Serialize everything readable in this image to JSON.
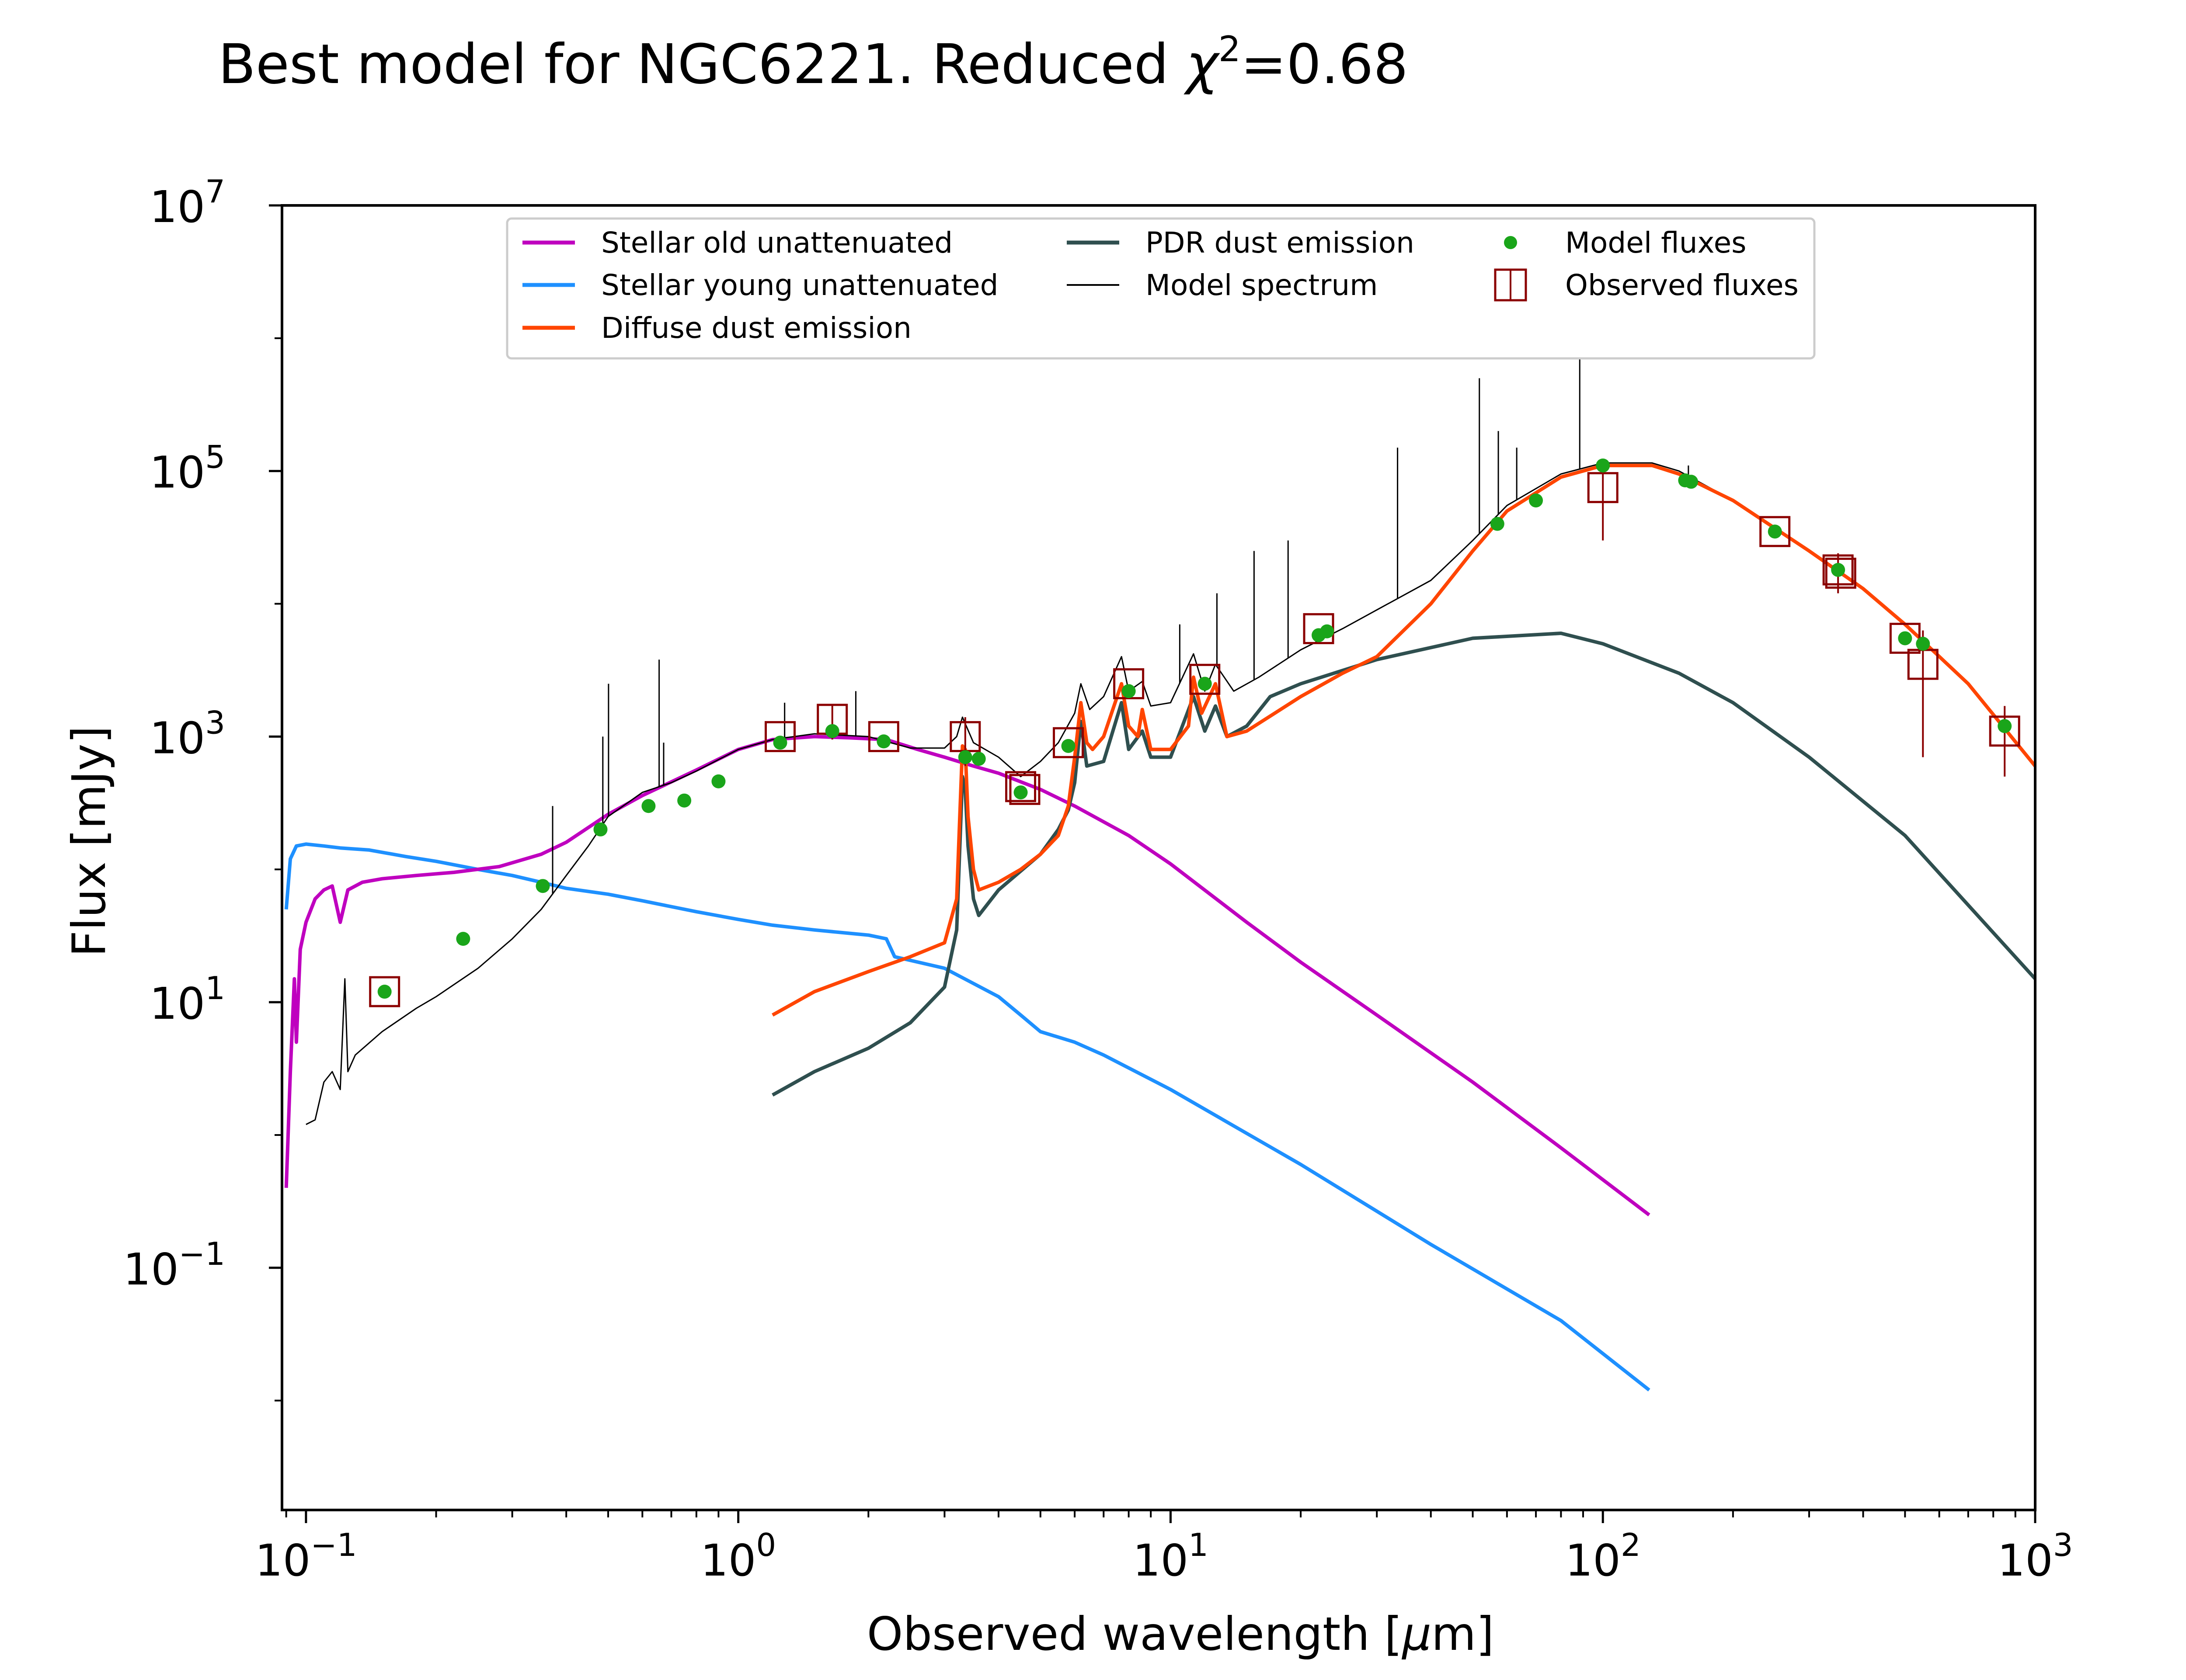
{
  "chart_data": {
    "type": "line",
    "title_main": "Best model for NGC6221. Reduced ",
    "title_chi": "χ",
    "title_sup": "2",
    "title_tail": "=0.68",
    "xlabel_main": "Observed wavelength [",
    "xlabel_mu": "μ",
    "xlabel_tail": "m]",
    "ylabel": "Flux [mJy]",
    "xscale": "log",
    "yscale": "log",
    "xlim": [
      0.088,
      1000
    ],
    "ylim": [
      0.0015,
      10000000
    ],
    "grid": false,
    "legend_placement": "top-center",
    "x_ticks": [
      {
        "value": 0.1,
        "base": "10",
        "exp": "−1"
      },
      {
        "value": 1,
        "base": "10",
        "exp": "0"
      },
      {
        "value": 10,
        "base": "10",
        "exp": "1"
      },
      {
        "value": 100,
        "base": "10",
        "exp": "2"
      },
      {
        "value": 1000,
        "base": "10",
        "exp": "3"
      }
    ],
    "y_ticks": [
      {
        "value": 0.1,
        "base": "10",
        "exp": "−1"
      },
      {
        "value": 10,
        "base": "10",
        "exp": "1"
      },
      {
        "value": 1000,
        "base": "10",
        "exp": "3"
      },
      {
        "value": 100000,
        "base": "10",
        "exp": "5"
      },
      {
        "value": 10000000,
        "base": "10",
        "exp": "7"
      }
    ],
    "series": [
      {
        "name": "Stellar old unattenuated",
        "color": "#bf00bf",
        "points": [
          [
            0.09,
            0.4
          ],
          [
            0.092,
            3
          ],
          [
            0.094,
            15
          ],
          [
            0.095,
            5
          ],
          [
            0.097,
            25
          ],
          [
            0.1,
            40
          ],
          [
            0.105,
            60
          ],
          [
            0.11,
            70
          ],
          [
            0.115,
            75
          ],
          [
            0.12,
            40
          ],
          [
            0.125,
            70
          ],
          [
            0.135,
            80
          ],
          [
            0.15,
            85
          ],
          [
            0.18,
            90
          ],
          [
            0.22,
            95
          ],
          [
            0.28,
            105
          ],
          [
            0.35,
            130
          ],
          [
            0.4,
            160
          ],
          [
            0.5,
            260
          ],
          [
            0.6,
            360
          ],
          [
            0.8,
            560
          ],
          [
            1.0,
            800
          ],
          [
            1.2,
            950
          ],
          [
            1.5,
            1000
          ],
          [
            1.8,
            980
          ],
          [
            2.2,
            950
          ],
          [
            2.6,
            800
          ],
          [
            3.0,
            700
          ],
          [
            3.5,
            600
          ],
          [
            4.0,
            530
          ],
          [
            5.0,
            400
          ],
          [
            6.0,
            300
          ],
          [
            8.0,
            180
          ],
          [
            10.0,
            110
          ],
          [
            15.0,
            40
          ],
          [
            20.0,
            20
          ],
          [
            30.0,
            8
          ],
          [
            50.0,
            2.5
          ],
          [
            80.0,
            0.8
          ],
          [
            128.0,
            0.25
          ]
        ]
      },
      {
        "name": "Stellar young unattenuated",
        "color": "#1e90ff",
        "points": [
          [
            0.09,
            50
          ],
          [
            0.092,
            120
          ],
          [
            0.095,
            150
          ],
          [
            0.1,
            155
          ],
          [
            0.11,
            150
          ],
          [
            0.12,
            145
          ],
          [
            0.14,
            140
          ],
          [
            0.17,
            125
          ],
          [
            0.2,
            115
          ],
          [
            0.25,
            100
          ],
          [
            0.3,
            90
          ],
          [
            0.35,
            80
          ],
          [
            0.4,
            72
          ],
          [
            0.5,
            65
          ],
          [
            0.6,
            58
          ],
          [
            0.8,
            48
          ],
          [
            1.0,
            42
          ],
          [
            1.2,
            38
          ],
          [
            1.5,
            35
          ],
          [
            2.0,
            32
          ],
          [
            2.2,
            30
          ],
          [
            2.3,
            22
          ],
          [
            3.0,
            18
          ],
          [
            4.0,
            11
          ],
          [
            4.5,
            8
          ],
          [
            5.0,
            6
          ],
          [
            6.0,
            5
          ],
          [
            7.0,
            4
          ],
          [
            10.0,
            2.2
          ],
          [
            20.0,
            0.6
          ],
          [
            40.0,
            0.15
          ],
          [
            80.0,
            0.04
          ],
          [
            128.0,
            0.012
          ]
        ]
      },
      {
        "name": "Diffuse dust emission",
        "color": "#ff4500",
        "points": [
          [
            1.2,
            8
          ],
          [
            1.5,
            12
          ],
          [
            2.0,
            17
          ],
          [
            2.5,
            22
          ],
          [
            3.0,
            28
          ],
          [
            3.2,
            60
          ],
          [
            3.3,
            850
          ],
          [
            3.35,
            800
          ],
          [
            3.4,
            250
          ],
          [
            3.5,
            100
          ],
          [
            3.6,
            70
          ],
          [
            4.0,
            80
          ],
          [
            4.5,
            100
          ],
          [
            5.0,
            130
          ],
          [
            5.5,
            180
          ],
          [
            5.8,
            300
          ],
          [
            6.0,
            700
          ],
          [
            6.2,
            1800
          ],
          [
            6.4,
            900
          ],
          [
            6.6,
            800
          ],
          [
            7.0,
            1000
          ],
          [
            7.7,
            2500
          ],
          [
            8.0,
            1200
          ],
          [
            8.4,
            1000
          ],
          [
            8.6,
            1600
          ],
          [
            9.0,
            800
          ],
          [
            10.0,
            800
          ],
          [
            11.0,
            1200
          ],
          [
            11.3,
            2800
          ],
          [
            11.8,
            1500
          ],
          [
            12.7,
            2500
          ],
          [
            13.5,
            1000
          ],
          [
            15.0,
            1100
          ],
          [
            20.0,
            2000
          ],
          [
            25.0,
            3000
          ],
          [
            30.0,
            4000
          ],
          [
            40.0,
            10000
          ],
          [
            50.0,
            25000
          ],
          [
            60.0,
            50000
          ],
          [
            80.0,
            90000
          ],
          [
            100.0,
            110000
          ],
          [
            130.0,
            110000
          ],
          [
            150.0,
            95000
          ],
          [
            200.0,
            60000
          ],
          [
            300.0,
            25000
          ],
          [
            400.0,
            13000
          ],
          [
            500.0,
            7000
          ],
          [
            700.0,
            2500
          ],
          [
            1000.0,
            600
          ]
        ]
      },
      {
        "name": "PDR dust emission",
        "color": "#2f4f4f",
        "points": [
          [
            1.2,
            2
          ],
          [
            1.5,
            3
          ],
          [
            2.0,
            4.5
          ],
          [
            2.5,
            7
          ],
          [
            3.0,
            13
          ],
          [
            3.2,
            35
          ],
          [
            3.3,
            500
          ],
          [
            3.35,
            400
          ],
          [
            3.4,
            150
          ],
          [
            3.5,
            60
          ],
          [
            3.6,
            45
          ],
          [
            4.0,
            70
          ],
          [
            5.0,
            130
          ],
          [
            5.5,
            200
          ],
          [
            5.8,
            280
          ],
          [
            6.0,
            450
          ],
          [
            6.2,
            1300
          ],
          [
            6.4,
            600
          ],
          [
            7.0,
            650
          ],
          [
            7.7,
            1800
          ],
          [
            8.0,
            800
          ],
          [
            8.6,
            1100
          ],
          [
            9.0,
            700
          ],
          [
            10.0,
            700
          ],
          [
            11.3,
            2000
          ],
          [
            12.0,
            1100
          ],
          [
            12.7,
            1700
          ],
          [
            13.5,
            1000
          ],
          [
            15.0,
            1200
          ],
          [
            17.0,
            2000
          ],
          [
            20.0,
            2500
          ],
          [
            30.0,
            3800
          ],
          [
            50.0,
            5500
          ],
          [
            80.0,
            6000
          ],
          [
            100.0,
            5000
          ],
          [
            150.0,
            3000
          ],
          [
            200.0,
            1800
          ],
          [
            300.0,
            700
          ],
          [
            500.0,
            180
          ],
          [
            1000.0,
            15
          ]
        ]
      },
      {
        "name": "Model spectrum",
        "color": "#000000",
        "points": [
          [
            0.1,
            1.2
          ],
          [
            0.105,
            1.3
          ],
          [
            0.11,
            2.5
          ],
          [
            0.115,
            3
          ],
          [
            0.12,
            2.2
          ],
          [
            0.123,
            15
          ],
          [
            0.125,
            3
          ],
          [
            0.13,
            4
          ],
          [
            0.15,
            6
          ],
          [
            0.18,
            9
          ],
          [
            0.2,
            11
          ],
          [
            0.25,
            18
          ],
          [
            0.3,
            30
          ],
          [
            0.35,
            50
          ],
          [
            0.4,
            90
          ],
          [
            0.45,
            150
          ],
          [
            0.5,
            250
          ],
          [
            0.6,
            380
          ],
          [
            0.7,
            450
          ],
          [
            0.8,
            550
          ],
          [
            1.0,
            800
          ],
          [
            1.2,
            950
          ],
          [
            1.5,
            1050
          ],
          [
            2.0,
            1000
          ],
          [
            2.5,
            820
          ],
          [
            3.0,
            820
          ],
          [
            3.2,
            1000
          ],
          [
            3.3,
            1400
          ],
          [
            3.5,
            900
          ],
          [
            4.0,
            700
          ],
          [
            4.5,
            500
          ],
          [
            5.0,
            650
          ],
          [
            5.5,
            900
          ],
          [
            6.0,
            1500
          ],
          [
            6.2,
            2500
          ],
          [
            6.5,
            1600
          ],
          [
            7.0,
            2000
          ],
          [
            7.7,
            4000
          ],
          [
            8.0,
            2200
          ],
          [
            8.6,
            2600
          ],
          [
            9.0,
            1700
          ],
          [
            10.0,
            1800
          ],
          [
            11.3,
            4200
          ],
          [
            12.0,
            2200
          ],
          [
            12.7,
            3500
          ],
          [
            14.0,
            2200
          ],
          [
            16.0,
            2800
          ],
          [
            20.0,
            4500
          ],
          [
            25.0,
            6500
          ],
          [
            30.0,
            9000
          ],
          [
            40.0,
            15000
          ],
          [
            50.0,
            30000
          ],
          [
            60.0,
            55000
          ],
          [
            80.0,
            95000
          ],
          [
            100.0,
            115000
          ],
          [
            130.0,
            115000
          ],
          [
            150.0,
            100000
          ],
          [
            200.0,
            60000
          ],
          [
            300.0,
            25000
          ],
          [
            400.0,
            13000
          ],
          [
            500.0,
            7000
          ],
          [
            700.0,
            2500
          ],
          [
            1000.0,
            600
          ]
        ]
      }
    ],
    "emission_lines": [
      {
        "x": 0.372,
        "top": 300
      },
      {
        "x": 0.486,
        "top": 1000
      },
      {
        "x": 0.501,
        "top": 2500
      },
      {
        "x": 0.656,
        "top": 3800
      },
      {
        "x": 0.672,
        "top": 900
      },
      {
        "x": 1.28,
        "top": 1800
      },
      {
        "x": 1.87,
        "top": 2200
      },
      {
        "x": 10.5,
        "top": 7000
      },
      {
        "x": 12.8,
        "top": 12000
      },
      {
        "x": 15.6,
        "top": 25000
      },
      {
        "x": 18.7,
        "top": 30000
      },
      {
        "x": 33.5,
        "top": 150000
      },
      {
        "x": 51.8,
        "top": 500000
      },
      {
        "x": 57.3,
        "top": 200000
      },
      {
        "x": 63.2,
        "top": 150000
      },
      {
        "x": 88.4,
        "top": 800000
      },
      {
        "x": 157.7,
        "top": 110000
      }
    ],
    "model_fluxes": {
      "name": "Model fluxes",
      "color": "#1aa51a",
      "points": [
        [
          0.152,
          12
        ],
        [
          0.231,
          30
        ],
        [
          0.353,
          75
        ],
        [
          0.48,
          200
        ],
        [
          0.62,
          300
        ],
        [
          0.75,
          330
        ],
        [
          0.9,
          460
        ],
        [
          1.25,
          900
        ],
        [
          1.65,
          1100
        ],
        [
          2.17,
          920
        ],
        [
          3.35,
          700
        ],
        [
          3.6,
          680
        ],
        [
          4.5,
          380
        ],
        [
          5.8,
          850
        ],
        [
          8.0,
          2200
        ],
        [
          12.0,
          2500
        ],
        [
          22.0,
          5800
        ],
        [
          23.0,
          6200
        ],
        [
          57.0,
          40000
        ],
        [
          70.0,
          60000
        ],
        [
          100.0,
          110000
        ],
        [
          155.0,
          85000
        ],
        [
          160.0,
          83000
        ],
        [
          250.0,
          35000
        ],
        [
          350.0,
          18000
        ],
        [
          500.0,
          5500
        ],
        [
          550.0,
          5000
        ],
        [
          850.0,
          1200
        ]
      ]
    },
    "observed_fluxes": {
      "name": "Observed fluxes",
      "color": "#8b0000",
      "points": [
        [
          0.152,
          12,
          0.7
        ],
        [
          1.25,
          1000,
          0
        ],
        [
          1.65,
          1350,
          400
        ],
        [
          2.17,
          1000,
          0
        ],
        [
          3.35,
          1000,
          400
        ],
        [
          4.5,
          420,
          0
        ],
        [
          4.6,
          400,
          0
        ],
        [
          5.8,
          900,
          0
        ],
        [
          8.0,
          2500,
          0
        ],
        [
          12.0,
          2700,
          0
        ],
        [
          22.0,
          6500,
          0
        ],
        [
          100.0,
          75000,
          45000
        ],
        [
          250.0,
          35000,
          0
        ],
        [
          350.0,
          18000,
          6000
        ],
        [
          355.0,
          17000,
          0
        ],
        [
          500.0,
          5500,
          0
        ],
        [
          550.0,
          3500,
          2800
        ],
        [
          850.0,
          1100,
          600
        ]
      ]
    }
  }
}
